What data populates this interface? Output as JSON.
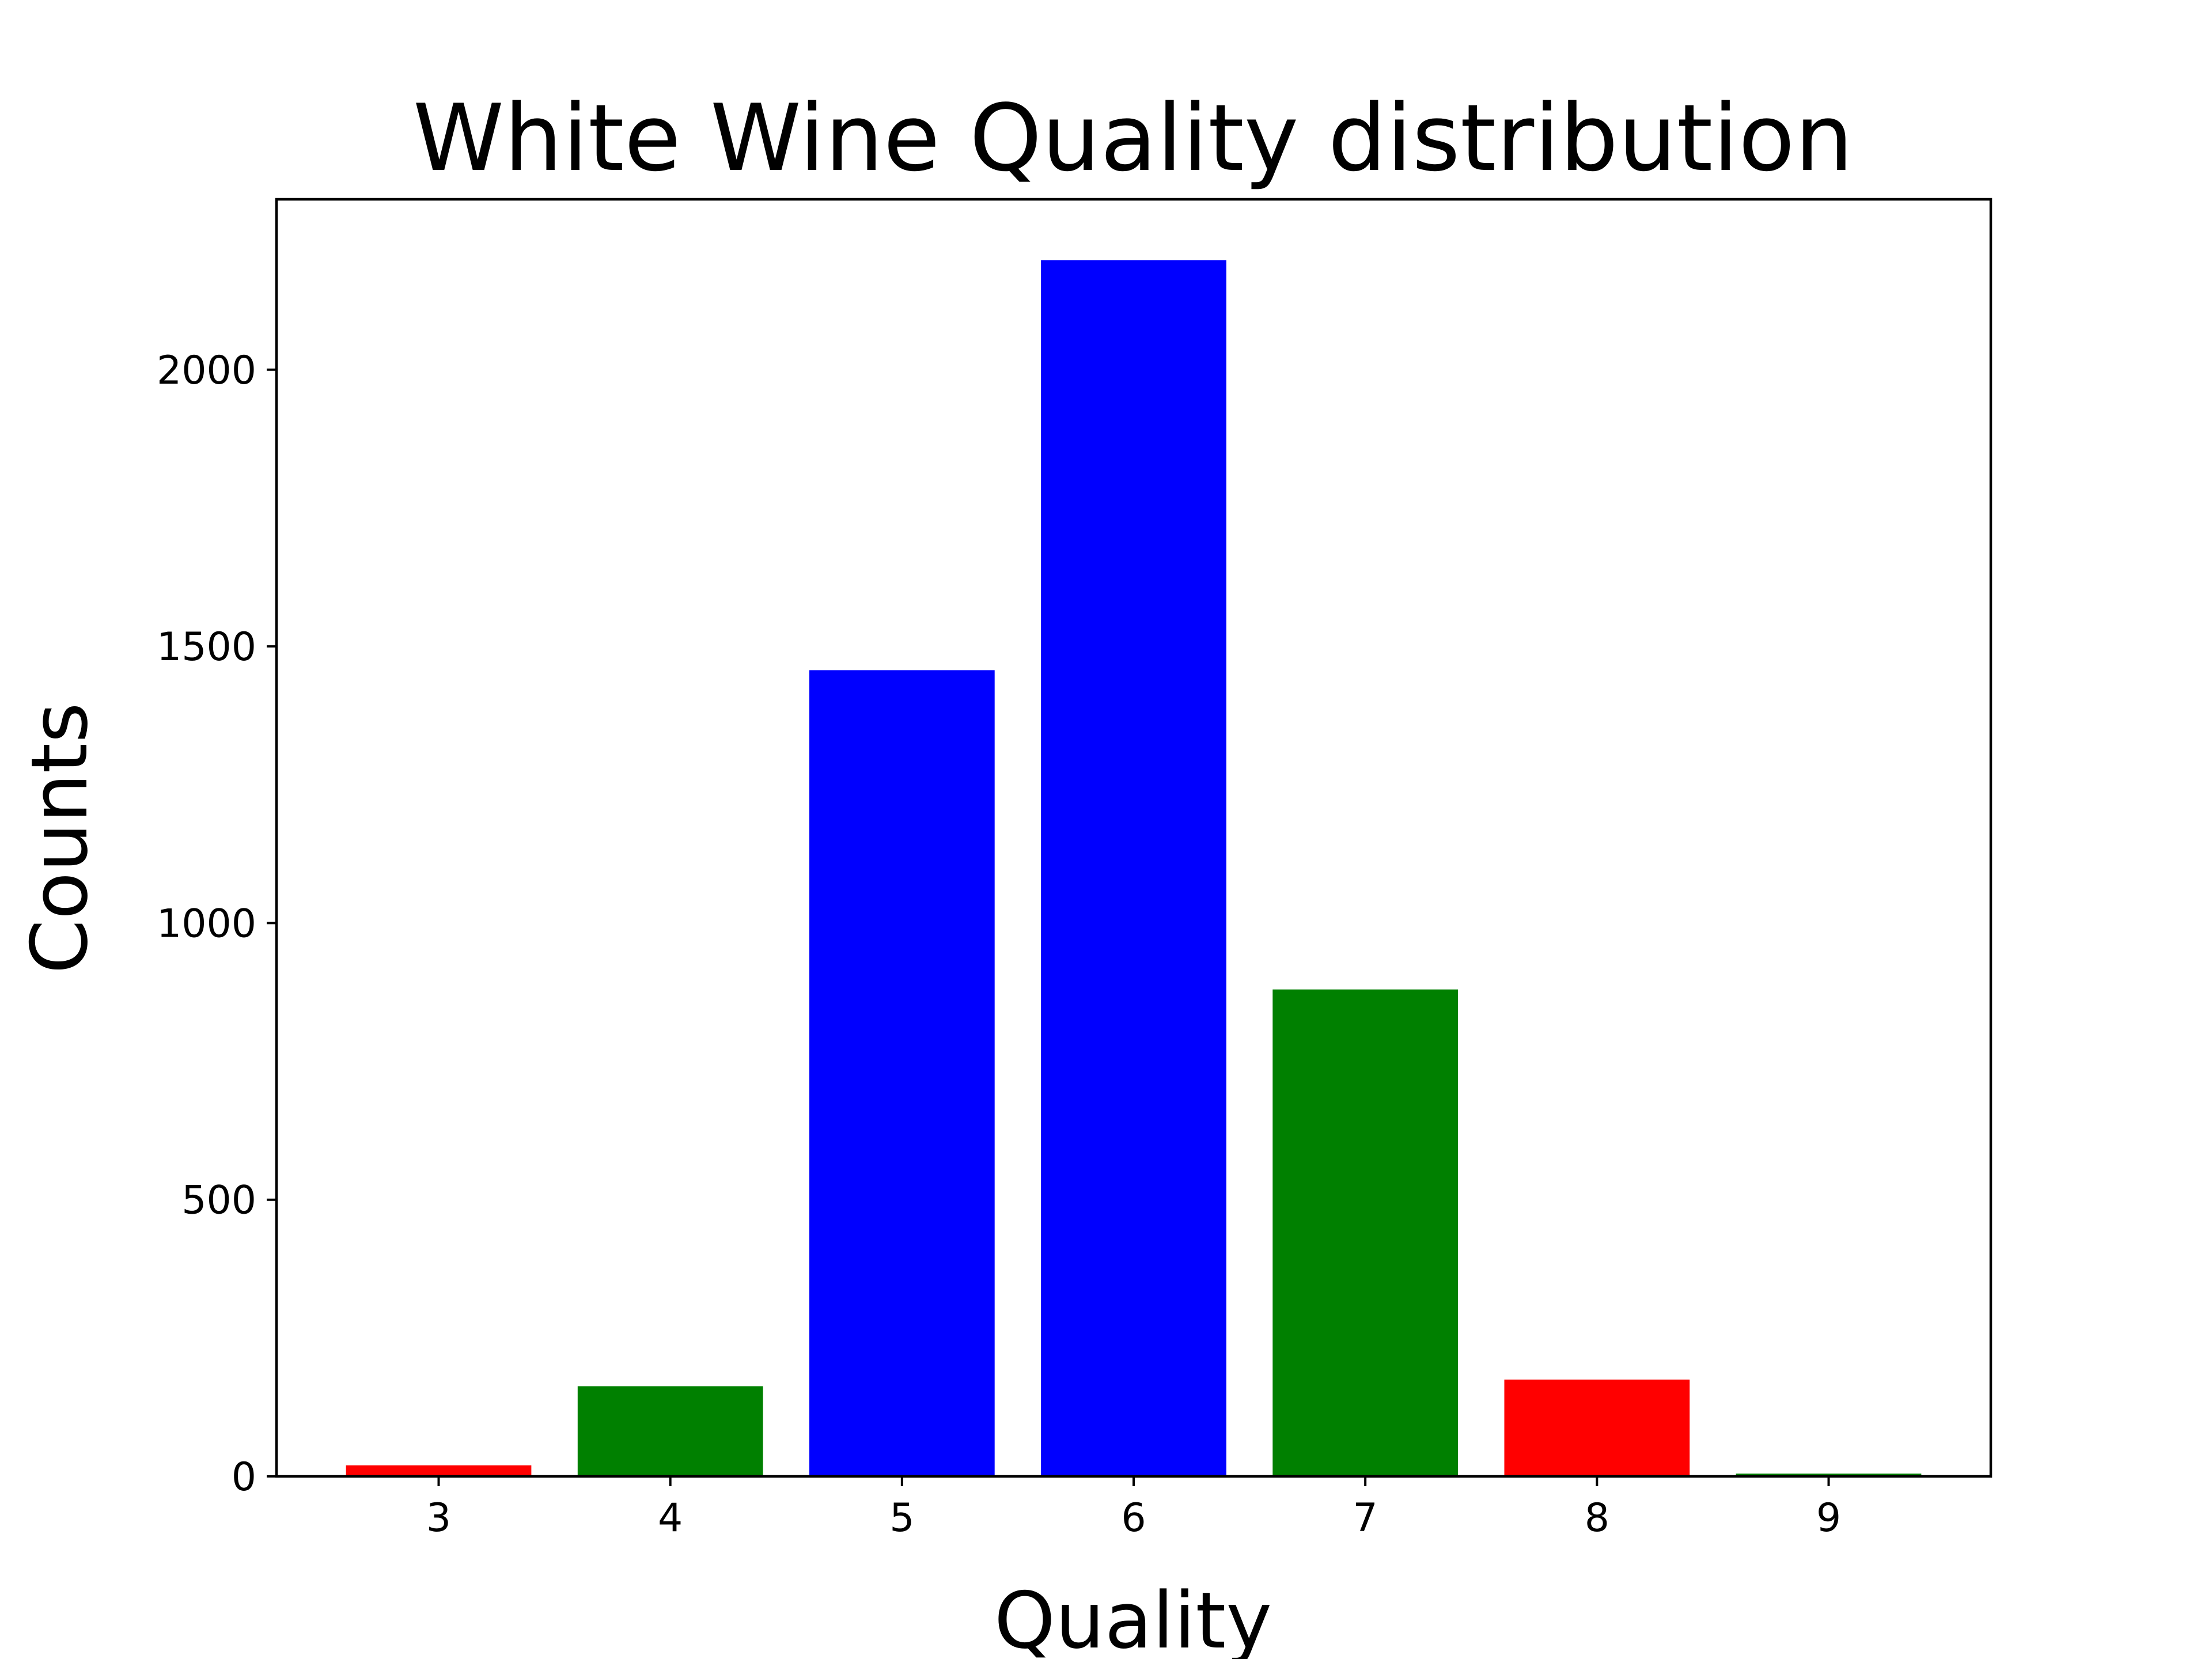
{
  "chart_data": {
    "type": "bar",
    "title": "White Wine Quality distribution",
    "xlabel": "Quality",
    "ylabel": "Counts",
    "categories": [
      "3",
      "4",
      "5",
      "6",
      "7",
      "8",
      "9"
    ],
    "values": [
      20,
      163,
      1457,
      2198,
      880,
      175,
      5
    ],
    "bar_colors": [
      "#ff0000",
      "#008000",
      "#0000ff",
      "#0000ff",
      "#008000",
      "#ff0000",
      "#008000"
    ],
    "ylim": [
      0,
      2307.9
    ],
    "xlim": [
      2.3,
      9.7
    ],
    "yticks": [
      0,
      500,
      1000,
      1500,
      2000
    ],
    "yticklabels": [
      "0",
      "500",
      "1000",
      "1500",
      "2000"
    ],
    "grid": false,
    "legend": null
  }
}
